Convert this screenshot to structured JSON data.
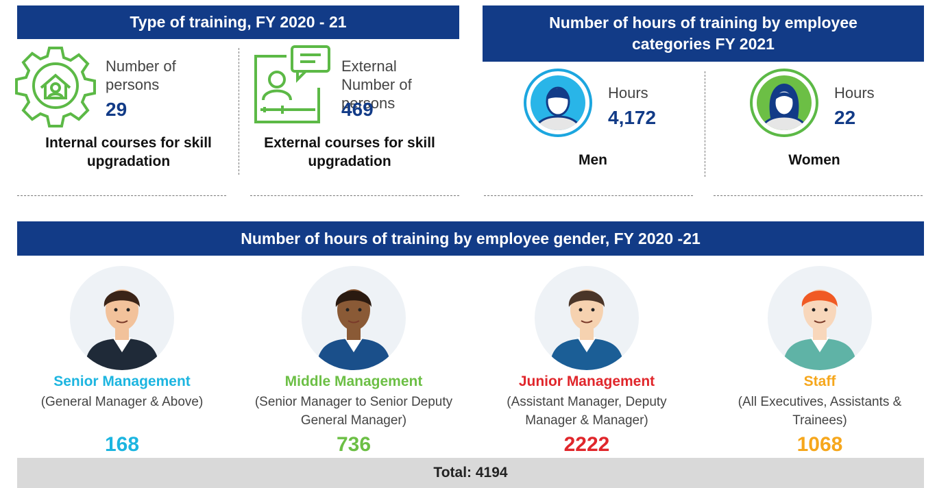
{
  "type_of_training": {
    "title": "Type of training, FY 2020 - 21",
    "items": [
      {
        "label": "Number of persons",
        "value": 29,
        "caption": "Internal courses for skill upgradation"
      },
      {
        "label": "External Number of persons",
        "value": 469,
        "caption": "External courses for skill upgradation"
      }
    ]
  },
  "hours_by_category": {
    "title": "Number of hours of training by employee categories FY 2021",
    "items": [
      {
        "label": "Hours",
        "value": "4,172",
        "caption": "Men"
      },
      {
        "label": "Hours",
        "value": 22,
        "caption": "Women"
      }
    ]
  },
  "hours_by_gender": {
    "title": "Number of hours of training by employee gender, FY 2020 -21",
    "items": [
      {
        "role": "Senior Management",
        "description": "(General Manager & Above)",
        "value": 168,
        "color": "#1cb5e0"
      },
      {
        "role": "Middle Management",
        "description": "(Senior Manager to Senior Deputy General Manager)",
        "value": 736,
        "color": "#6cbf45"
      },
      {
        "role": "Junior Management",
        "description": "(Assistant Manager, Deputy Manager & Manager)",
        "value": 2222,
        "color": "#e0262b"
      },
      {
        "role": "Staff",
        "description": "(All Executives, Assistants & Trainees)",
        "value": 1068,
        "color": "#f6a71c"
      }
    ],
    "total": "Total: 4194"
  }
}
